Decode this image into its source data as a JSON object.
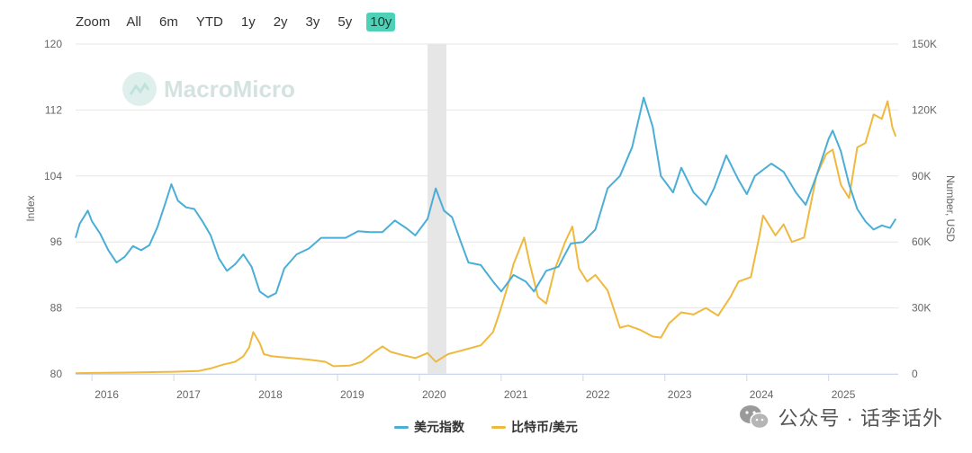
{
  "zoom": {
    "label": "Zoom",
    "buttons": [
      "All",
      "6m",
      "YTD",
      "1y",
      "2y",
      "3y",
      "5y",
      "10y"
    ],
    "active": "10y"
  },
  "watermark": {
    "text": "MacroMicro"
  },
  "footer": {
    "wechat_text": "公众号 · 话李话外"
  },
  "colors": {
    "dxy": "#4aaed6",
    "btc": "#efb93e",
    "shade": "#e6e6e6",
    "grid": "#e6e6e6"
  },
  "chart_data": {
    "type": "line",
    "x_axis": {
      "range": [
        2015.8,
        2025.85
      ],
      "ticks": [
        "2016",
        "2017",
        "2018",
        "2019",
        "2020",
        "2021",
        "2022",
        "2023",
        "2024",
        "2025"
      ]
    },
    "y_left": {
      "label": "Index",
      "range": [
        80,
        120
      ],
      "ticks": [
        80,
        88,
        96,
        104,
        112,
        120
      ]
    },
    "y_right": {
      "label": "Number, USD",
      "range": [
        0,
        150000
      ],
      "ticks": [
        "0",
        "30K",
        "60K",
        "90K",
        "120K",
        "150K"
      ]
    },
    "shaded_region": [
      2020.1,
      2020.33
    ],
    "legend_position": "bottom-center",
    "series": [
      {
        "name": "美元指数",
        "axis": "left",
        "points": [
          [
            2015.8,
            96.5
          ],
          [
            2015.85,
            98.2
          ],
          [
            2015.95,
            99.8
          ],
          [
            2016.0,
            98.5
          ],
          [
            2016.1,
            97.0
          ],
          [
            2016.2,
            95.0
          ],
          [
            2016.3,
            93.5
          ],
          [
            2016.4,
            94.2
          ],
          [
            2016.5,
            95.5
          ],
          [
            2016.6,
            95.0
          ],
          [
            2016.7,
            95.6
          ],
          [
            2016.8,
            97.8
          ],
          [
            2016.9,
            100.8
          ],
          [
            2016.97,
            103.0
          ],
          [
            2017.05,
            101.0
          ],
          [
            2017.15,
            100.2
          ],
          [
            2017.25,
            100.0
          ],
          [
            2017.35,
            98.5
          ],
          [
            2017.45,
            96.8
          ],
          [
            2017.55,
            94.0
          ],
          [
            2017.65,
            92.5
          ],
          [
            2017.75,
            93.3
          ],
          [
            2017.85,
            94.5
          ],
          [
            2017.95,
            93.0
          ],
          [
            2018.05,
            90.0
          ],
          [
            2018.15,
            89.3
          ],
          [
            2018.25,
            89.8
          ],
          [
            2018.35,
            92.8
          ],
          [
            2018.5,
            94.5
          ],
          [
            2018.65,
            95.2
          ],
          [
            2018.8,
            96.5
          ],
          [
            2018.95,
            96.5
          ],
          [
            2019.1,
            96.5
          ],
          [
            2019.25,
            97.3
          ],
          [
            2019.4,
            97.2
          ],
          [
            2019.55,
            97.2
          ],
          [
            2019.7,
            98.6
          ],
          [
            2019.85,
            97.6
          ],
          [
            2019.95,
            96.8
          ],
          [
            2020.1,
            98.8
          ],
          [
            2020.2,
            102.5
          ],
          [
            2020.3,
            99.8
          ],
          [
            2020.4,
            99.0
          ],
          [
            2020.5,
            96.2
          ],
          [
            2020.6,
            93.5
          ],
          [
            2020.75,
            93.2
          ],
          [
            2020.9,
            91.2
          ],
          [
            2021.0,
            90.0
          ],
          [
            2021.15,
            92.0
          ],
          [
            2021.3,
            91.2
          ],
          [
            2021.4,
            90.0
          ],
          [
            2021.55,
            92.5
          ],
          [
            2021.7,
            93.0
          ],
          [
            2021.85,
            95.8
          ],
          [
            2022.0,
            96.0
          ],
          [
            2022.15,
            97.5
          ],
          [
            2022.3,
            102.5
          ],
          [
            2022.45,
            104.0
          ],
          [
            2022.6,
            107.5
          ],
          [
            2022.74,
            113.5
          ],
          [
            2022.85,
            110.0
          ],
          [
            2022.95,
            104.0
          ],
          [
            2023.1,
            102.0
          ],
          [
            2023.2,
            105.0
          ],
          [
            2023.35,
            102.0
          ],
          [
            2023.5,
            100.5
          ],
          [
            2023.6,
            102.5
          ],
          [
            2023.75,
            106.5
          ],
          [
            2023.9,
            103.5
          ],
          [
            2024.0,
            101.8
          ],
          [
            2024.1,
            104.0
          ],
          [
            2024.3,
            105.5
          ],
          [
            2024.45,
            104.5
          ],
          [
            2024.6,
            102.0
          ],
          [
            2024.72,
            100.5
          ],
          [
            2024.85,
            104.0
          ],
          [
            2025.0,
            108.5
          ],
          [
            2025.05,
            109.5
          ],
          [
            2025.15,
            107.0
          ],
          [
            2025.25,
            103.0
          ],
          [
            2025.35,
            100.0
          ],
          [
            2025.45,
            98.5
          ],
          [
            2025.55,
            97.5
          ],
          [
            2025.65,
            98.0
          ],
          [
            2025.75,
            97.7
          ],
          [
            2025.82,
            98.8
          ]
        ]
      },
      {
        "name": "比特币/美元",
        "axis": "right",
        "points": [
          [
            2015.8,
            300
          ],
          [
            2016.0,
            430
          ],
          [
            2016.5,
            650
          ],
          [
            2016.9,
            900
          ],
          [
            2017.0,
            1000
          ],
          [
            2017.3,
            1300
          ],
          [
            2017.45,
            2500
          ],
          [
            2017.6,
            4200
          ],
          [
            2017.75,
            5500
          ],
          [
            2017.85,
            8000
          ],
          [
            2017.92,
            12000
          ],
          [
            2017.97,
            19000
          ],
          [
            2018.05,
            14000
          ],
          [
            2018.1,
            9000
          ],
          [
            2018.2,
            8000
          ],
          [
            2018.35,
            7500
          ],
          [
            2018.5,
            7000
          ],
          [
            2018.65,
            6500
          ],
          [
            2018.85,
            5500
          ],
          [
            2018.95,
            3500
          ],
          [
            2019.15,
            3800
          ],
          [
            2019.3,
            5500
          ],
          [
            2019.45,
            10000
          ],
          [
            2019.55,
            12500
          ],
          [
            2019.65,
            10000
          ],
          [
            2019.8,
            8500
          ],
          [
            2019.95,
            7200
          ],
          [
            2020.1,
            9500
          ],
          [
            2020.2,
            5500
          ],
          [
            2020.35,
            9000
          ],
          [
            2020.55,
            11000
          ],
          [
            2020.75,
            13000
          ],
          [
            2020.9,
            19000
          ],
          [
            2020.99,
            29000
          ],
          [
            2021.08,
            40000
          ],
          [
            2021.15,
            50000
          ],
          [
            2021.28,
            62000
          ],
          [
            2021.35,
            50000
          ],
          [
            2021.45,
            35000
          ],
          [
            2021.55,
            32000
          ],
          [
            2021.65,
            47000
          ],
          [
            2021.78,
            60000
          ],
          [
            2021.87,
            67000
          ],
          [
            2021.95,
            48000
          ],
          [
            2022.05,
            42000
          ],
          [
            2022.15,
            45000
          ],
          [
            2022.3,
            38000
          ],
          [
            2022.45,
            21000
          ],
          [
            2022.55,
            22000
          ],
          [
            2022.7,
            20000
          ],
          [
            2022.85,
            17000
          ],
          [
            2022.95,
            16500
          ],
          [
            2023.05,
            23000
          ],
          [
            2023.2,
            28000
          ],
          [
            2023.35,
            27000
          ],
          [
            2023.5,
            30000
          ],
          [
            2023.65,
            26500
          ],
          [
            2023.8,
            35000
          ],
          [
            2023.9,
            42000
          ],
          [
            2024.05,
            44000
          ],
          [
            2024.15,
            62000
          ],
          [
            2024.2,
            72000
          ],
          [
            2024.35,
            63000
          ],
          [
            2024.45,
            68000
          ],
          [
            2024.55,
            60000
          ],
          [
            2024.7,
            62000
          ],
          [
            2024.85,
            90000
          ],
          [
            2024.97,
            100000
          ],
          [
            2025.05,
            102000
          ],
          [
            2025.15,
            86000
          ],
          [
            2025.25,
            80000
          ],
          [
            2025.35,
            103000
          ],
          [
            2025.45,
            105000
          ],
          [
            2025.55,
            118000
          ],
          [
            2025.65,
            116000
          ],
          [
            2025.72,
            124000
          ],
          [
            2025.78,
            112000
          ],
          [
            2025.82,
            108000
          ]
        ]
      }
    ]
  }
}
